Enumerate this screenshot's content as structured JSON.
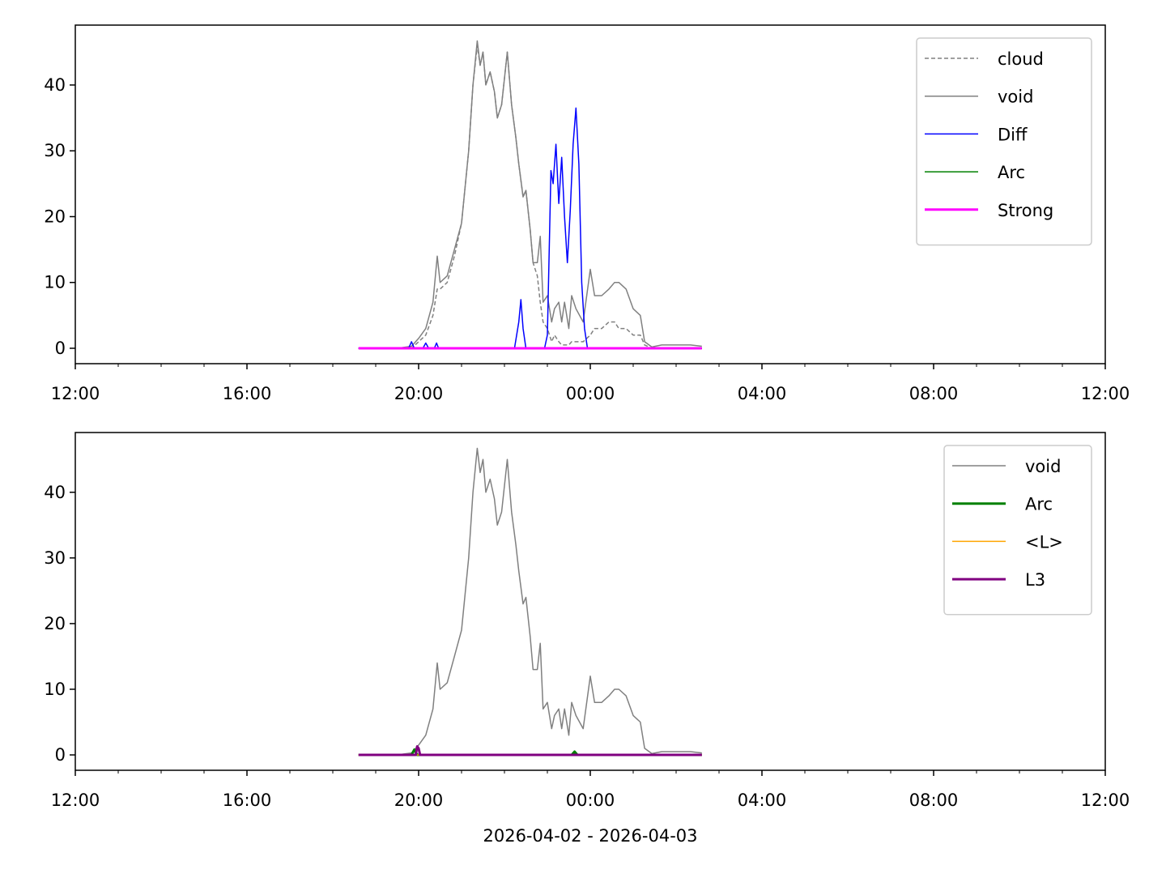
{
  "chart_data": [
    {
      "type": "line",
      "ylim": [
        -2.34,
        49.1
      ],
      "yticks": [
        0,
        10,
        20,
        30,
        40
      ],
      "xlim": [
        12,
        36
      ],
      "xticks": [
        {
          "value": 12,
          "label": "12:00"
        },
        {
          "value": 16,
          "label": "16:00"
        },
        {
          "value": 20,
          "label": "20:00"
        },
        {
          "value": 24,
          "label": "00:00"
        },
        {
          "value": 28,
          "label": "04:00"
        },
        {
          "value": 32,
          "label": "08:00"
        },
        {
          "value": 36,
          "label": "12:00"
        }
      ],
      "xminorticks": [
        13,
        14,
        15,
        17,
        18,
        19,
        21,
        22,
        23,
        25,
        26,
        27,
        29,
        30,
        31,
        33,
        34,
        35
      ],
      "legend": "upper right",
      "series": [
        {
          "name": "cloud",
          "color": "#808080",
          "width": 1.5,
          "dash": true,
          "x": [
            "18:36",
            "19:30",
            "19:50",
            "20:00",
            "20:10",
            "20:20",
            "20:26",
            "20:30",
            "20:40",
            "20:50",
            "21:00",
            "21:10",
            "21:16",
            "21:22",
            "21:26",
            "21:30",
            "21:34",
            "21:40",
            "21:46",
            "21:50",
            "21:56",
            "22:00",
            "22:04",
            "22:10",
            "22:16",
            "22:20",
            "22:26",
            "22:30",
            "22:36",
            "22:40",
            "22:46",
            "22:50",
            "22:54",
            "23:00",
            "23:06",
            "23:10",
            "23:16",
            "23:20",
            "23:24",
            "23:30",
            "23:34",
            "23:40",
            "23:50",
            "00:00",
            "00:06",
            "00:16",
            "00:26",
            "00:34",
            "00:40",
            "00:50",
            "01:00",
            "01:10",
            "01:16",
            "01:26",
            "01:40",
            "02:00",
            "02:20",
            "02:36"
          ],
          "values": [
            0,
            0,
            0,
            1,
            2,
            5,
            9,
            9,
            10,
            14,
            19,
            30,
            40,
            46,
            43,
            45,
            40,
            42,
            39,
            35,
            37,
            41,
            45,
            37,
            32,
            28,
            23,
            24,
            18,
            13,
            11,
            7,
            4,
            3,
            1,
            2,
            1,
            0.5,
            0.5,
            0.5,
            1,
            1,
            1,
            2,
            3,
            3,
            4,
            4,
            3,
            3,
            2,
            2,
            0.5,
            0,
            0,
            0,
            0,
            0
          ]
        },
        {
          "name": "void",
          "color": "#808080",
          "width": 1.5,
          "x": [
            "18:36",
            "19:30",
            "19:50",
            "20:00",
            "20:10",
            "20:20",
            "20:26",
            "20:30",
            "20:40",
            "20:50",
            "21:00",
            "21:10",
            "21:16",
            "21:22",
            "21:26",
            "21:30",
            "21:34",
            "21:40",
            "21:46",
            "21:50",
            "21:56",
            "22:00",
            "22:04",
            "22:10",
            "22:16",
            "22:20",
            "22:26",
            "22:30",
            "22:36",
            "22:40",
            "22:46",
            "22:50",
            "22:54",
            "23:00",
            "23:06",
            "23:10",
            "23:16",
            "23:20",
            "23:24",
            "23:30",
            "23:34",
            "23:40",
            "23:50",
            "00:00",
            "00:06",
            "00:16",
            "00:26",
            "00:34",
            "00:40",
            "00:50",
            "01:00",
            "01:10",
            "01:16",
            "01:26",
            "01:40",
            "02:00",
            "02:20",
            "02:36"
          ],
          "values": [
            0,
            0,
            0.3,
            1.5,
            3,
            7,
            14,
            10,
            11,
            15,
            19,
            30,
            40,
            46.7,
            43,
            45,
            40,
            42,
            39,
            35,
            37,
            41,
            45,
            37,
            32,
            28,
            23,
            24,
            18,
            13,
            13,
            17,
            7,
            8,
            4,
            6,
            7,
            4,
            7,
            3,
            8,
            6,
            4,
            12,
            8,
            8,
            9,
            10,
            10,
            9,
            6,
            5,
            1,
            0.2,
            0.5,
            0.5,
            0.5,
            0.3
          ]
        },
        {
          "name": "Diff",
          "color": "#0000ff",
          "width": 1.5,
          "x": [
            "18:36",
            "19:46",
            "19:50",
            "19:54",
            "20:06",
            "20:10",
            "20:14",
            "20:22",
            "20:25",
            "20:28",
            "22:14",
            "22:20",
            "22:23",
            "22:26",
            "22:30",
            "22:56",
            "23:00",
            "23:05",
            "23:08",
            "23:12",
            "23:16",
            "23:20",
            "23:24",
            "23:28",
            "23:32",
            "23:36",
            "23:40",
            "23:44",
            "23:48",
            "23:52",
            "23:56",
            "02:36"
          ],
          "values": [
            0,
            0,
            1,
            0,
            0,
            0.8,
            0,
            0,
            0.8,
            0,
            0,
            4,
            7.4,
            3,
            0,
            0,
            2,
            27,
            25,
            31,
            22,
            29,
            20,
            13,
            21,
            31,
            36.5,
            28,
            10,
            3,
            0,
            0
          ]
        },
        {
          "name": "Arc",
          "color": "#008000",
          "width": 1.5,
          "x": [
            "18:36",
            "02:36"
          ],
          "values": [
            0,
            0
          ]
        },
        {
          "name": "Strong",
          "color": "#ff00ff",
          "width": 3,
          "x": [
            "18:36",
            "02:36"
          ],
          "values": [
            0,
            0
          ]
        }
      ]
    },
    {
      "type": "line",
      "ylim": [
        -2.34,
        49.1
      ],
      "yticks": [
        0,
        10,
        20,
        30,
        40
      ],
      "xlim": [
        12,
        36
      ],
      "xticks": [
        {
          "value": 12,
          "label": "12:00"
        },
        {
          "value": 16,
          "label": "16:00"
        },
        {
          "value": 20,
          "label": "20:00"
        },
        {
          "value": 24,
          "label": "00:00"
        },
        {
          "value": 28,
          "label": "04:00"
        },
        {
          "value": 32,
          "label": "08:00"
        },
        {
          "value": 36,
          "label": "12:00"
        }
      ],
      "xminorticks": [
        13,
        14,
        15,
        17,
        18,
        19,
        21,
        22,
        23,
        25,
        26,
        27,
        29,
        30,
        31,
        33,
        34,
        35
      ],
      "xlabel": "2026-04-02 - 2026-04-03",
      "legend": "upper right",
      "series": [
        {
          "name": "void",
          "color": "#808080",
          "width": 1.5,
          "x": [
            "18:36",
            "19:30",
            "19:50",
            "20:00",
            "20:10",
            "20:20",
            "20:26",
            "20:30",
            "20:40",
            "20:50",
            "21:00",
            "21:10",
            "21:16",
            "21:22",
            "21:26",
            "21:30",
            "21:34",
            "21:40",
            "21:46",
            "21:50",
            "21:56",
            "22:00",
            "22:04",
            "22:10",
            "22:16",
            "22:20",
            "22:26",
            "22:30",
            "22:36",
            "22:40",
            "22:46",
            "22:50",
            "22:54",
            "23:00",
            "23:06",
            "23:10",
            "23:16",
            "23:20",
            "23:24",
            "23:30",
            "23:34",
            "23:40",
            "23:50",
            "00:00",
            "00:06",
            "00:16",
            "00:26",
            "00:34",
            "00:40",
            "00:50",
            "01:00",
            "01:10",
            "01:16",
            "01:26",
            "01:40",
            "02:00",
            "02:20",
            "02:36"
          ],
          "values": [
            0,
            0,
            0.3,
            1.5,
            3,
            7,
            14,
            10,
            11,
            15,
            19,
            30,
            40,
            46.7,
            43,
            45,
            40,
            42,
            39,
            35,
            37,
            41,
            45,
            37,
            32,
            28,
            23,
            24,
            18,
            13,
            13,
            17,
            7,
            8,
            4,
            6,
            7,
            4,
            7,
            3,
            8,
            6,
            4,
            12,
            8,
            8,
            9,
            10,
            10,
            9,
            6,
            5,
            1,
            0.2,
            0.5,
            0.5,
            0.5,
            0.3
          ]
        },
        {
          "name": "Arc",
          "color": "#008000",
          "width": 3,
          "x": [
            "18:36",
            "19:50",
            "19:54",
            "19:58",
            "23:34",
            "23:38",
            "23:42",
            "02:36"
          ],
          "values": [
            0,
            0,
            0.8,
            0,
            0,
            0.5,
            0,
            0
          ]
        },
        {
          "name": "<L>",
          "color": "#ffa500",
          "width": 1.5,
          "x": [
            "18:36",
            "02:36"
          ],
          "values": [
            0,
            0
          ]
        },
        {
          "name": "L3",
          "color": "#800080",
          "width": 3,
          "x": [
            "18:36",
            "19:56",
            "19:58",
            "20:00",
            "20:02",
            "02:36"
          ],
          "values": [
            0,
            0,
            1.3,
            1,
            0,
            0
          ]
        }
      ]
    }
  ]
}
